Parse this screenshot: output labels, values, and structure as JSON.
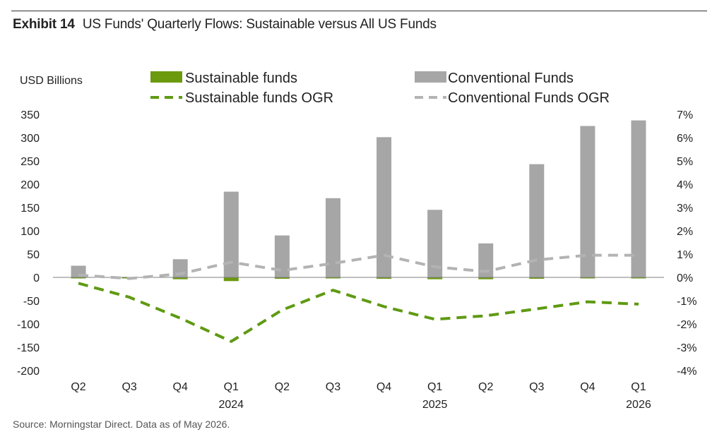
{
  "header": {
    "exhibit_label": "Exhibit 14",
    "title": "US Funds' Quarterly Flows: Sustainable versus All US Funds"
  },
  "footer": {
    "source": "Source: Morningstar Direct. Data as of May 2026."
  },
  "colors": {
    "sustainable": "#6b9a0f",
    "conventional": "#a6a6a6",
    "sustainable_line": "#5f9a12",
    "conventional_line": "#b3b3b3",
    "baseline": "#7f7f7f"
  },
  "chart_data": {
    "type": "bar",
    "title": "US Funds' Quarterly Flows: Sustainable versus All US Funds",
    "ylabel": "USD Billions",
    "ylim": [
      -200,
      350
    ],
    "y2lim": [
      -4,
      7
    ],
    "yticks": [
      "350",
      "300",
      "250",
      "200",
      "150",
      "100",
      "50",
      "0",
      "-50",
      "-100",
      "-150",
      "-200"
    ],
    "y2ticks": [
      "7%",
      "6%",
      "5%",
      "4%",
      "3%",
      "2%",
      "1%",
      "0%",
      "-1%",
      "-2%",
      "-3%",
      "-4%"
    ],
    "categories": [
      "Q2",
      "Q3",
      "Q4",
      "Q1",
      "Q2",
      "Q3",
      "Q4",
      "Q1",
      "Q2",
      "Q3",
      "Q4",
      "Q1"
    ],
    "year_labels": [
      "",
      "",
      "",
      "2024",
      "",
      "",
      "",
      "2025",
      "",
      "",
      "",
      "2026"
    ],
    "legend_position": "top",
    "grid": false,
    "series": [
      {
        "name": "Sustainable funds",
        "kind": "bar",
        "axis": "left",
        "values": [
          -1,
          -1,
          -4,
          -8,
          -3,
          -2,
          -3,
          -4,
          -4,
          -3,
          -2,
          -2
        ]
      },
      {
        "name": "Conventional Funds",
        "kind": "bar",
        "axis": "left",
        "values": [
          25,
          1,
          39,
          184,
          90,
          170,
          301,
          145,
          73,
          243,
          325,
          337
        ]
      },
      {
        "name": "Sustainable funds OGR",
        "kind": "line",
        "style": "dashed",
        "axis": "right",
        "values": [
          -0.25,
          -0.85,
          -1.75,
          -2.75,
          -1.4,
          -0.55,
          -1.25,
          -1.8,
          -1.65,
          -1.35,
          -1.05,
          -1.15
        ]
      },
      {
        "name": "Conventional Funds OGR",
        "kind": "line",
        "style": "dashed",
        "axis": "right",
        "values": [
          0.1,
          -0.05,
          0.15,
          0.65,
          0.3,
          0.6,
          0.95,
          0.45,
          0.25,
          0.75,
          0.95,
          0.95
        ]
      }
    ]
  }
}
